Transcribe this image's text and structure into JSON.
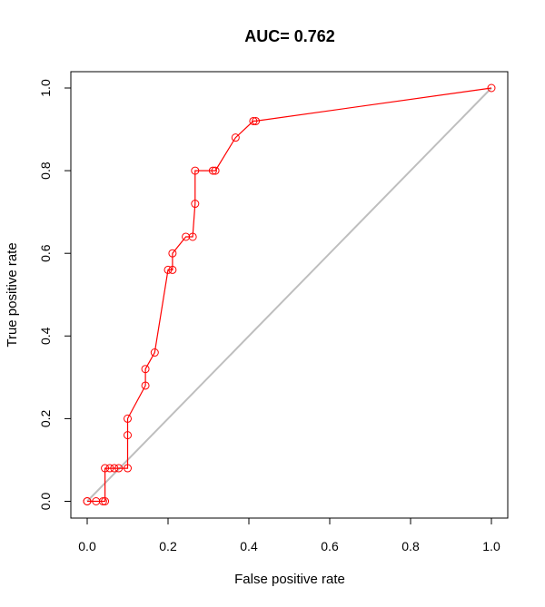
{
  "chart_data": {
    "type": "line",
    "title": "AUC= 0.762",
    "xlabel": "False positive rate",
    "ylabel": "True positive rate",
    "xlim": [
      0,
      1
    ],
    "ylim": [
      0,
      1
    ],
    "x_ticks": [
      "0.0",
      "0.2",
      "0.4",
      "0.6",
      "0.8",
      "1.0"
    ],
    "y_ticks": [
      "0.0",
      "0.2",
      "0.4",
      "0.6",
      "0.8",
      "1.0"
    ],
    "grid": false,
    "series": [
      {
        "color": "#ff0000",
        "marker": "open-circle",
        "x": [
          0.0,
          0.0,
          0.022,
          0.039,
          0.044,
          0.044,
          0.056,
          0.067,
          0.078,
          0.1,
          0.1,
          0.1,
          0.144,
          0.144,
          0.167,
          0.2,
          0.211,
          0.211,
          0.244,
          0.261,
          0.267,
          0.267,
          0.311,
          0.317,
          0.367,
          0.411,
          0.417,
          1.0
        ],
        "y": [
          0.0,
          0.0,
          0.0,
          0.0,
          0.0,
          0.08,
          0.08,
          0.08,
          0.08,
          0.08,
          0.16,
          0.2,
          0.28,
          0.32,
          0.36,
          0.56,
          0.56,
          0.6,
          0.64,
          0.64,
          0.72,
          0.8,
          0.8,
          0.8,
          0.88,
          0.92,
          0.92,
          1.0
        ]
      },
      {
        "color": "#bebebe",
        "x": [
          0,
          1
        ],
        "y": [
          0,
          1
        ]
      }
    ]
  }
}
